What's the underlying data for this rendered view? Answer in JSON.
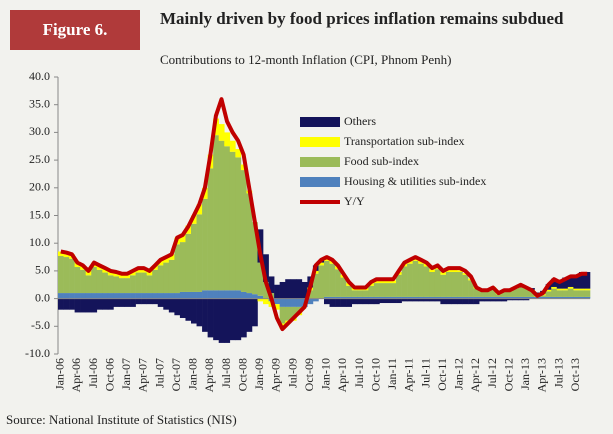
{
  "chart_data": {
    "type": "bar",
    "figure_label": "Figure 6.",
    "title": "Mainly driven by food prices inflation remains subdued",
    "subtitle": "Contributions to 12-month Inflation  (CPI, Phnom Penh)",
    "source": "Source: National Institute of Statistics (NIS)",
    "categories": [
      "Jan-06",
      null,
      null,
      "Apr-06",
      null,
      null,
      "Jul-06",
      null,
      null,
      "Oct-06",
      null,
      null,
      "Jan-07",
      null,
      null,
      "Apr-07",
      null,
      null,
      "Jul-07",
      null,
      null,
      "Oct-07",
      null,
      null,
      "Jan-08",
      null,
      null,
      "Apr-08",
      null,
      null,
      "Jul-08",
      null,
      null,
      "Oct-08",
      null,
      null,
      "Jan-09",
      null,
      null,
      "Apr-09",
      null,
      null,
      "Jul-09",
      null,
      null,
      "Oct-09",
      null,
      null,
      "Jan-10",
      null,
      null,
      "Apr-10",
      null,
      null,
      "Jul-10",
      null,
      null,
      "Oct-10",
      null,
      null,
      "Jan-11",
      null,
      null,
      "Apr-11",
      null,
      null,
      "Jul-11",
      null,
      null,
      "Oct-11",
      null,
      null,
      "Jan-12",
      null,
      null,
      "Apr-12",
      null,
      null,
      "Jul-12",
      null,
      null,
      "Oct-12",
      null,
      null,
      "Jan-13",
      null,
      null,
      "Apr-13",
      null,
      null,
      "Jul-13",
      null,
      null,
      "Oct-13",
      null,
      null
    ],
    "ylim": [
      -10,
      40
    ],
    "yticks": [
      {
        "value": -10,
        "label": "-10.0"
      },
      {
        "value": -5,
        "label": "-5.0"
      },
      {
        "value": 0,
        "label": "0.0"
      },
      {
        "value": 5,
        "label": "5.0"
      },
      {
        "value": 10,
        "label": "10.0"
      },
      {
        "value": 15,
        "label": "15.0"
      },
      {
        "value": 20,
        "label": "20.0"
      },
      {
        "value": 25,
        "label": "25.0"
      },
      {
        "value": 30,
        "label": "30.0"
      },
      {
        "value": 35,
        "label": "35.0"
      },
      {
        "value": 40,
        "label": "40.0"
      }
    ],
    "series": [
      {
        "name": "Others",
        "color": "#14145a",
        "type": "bar",
        "values": [
          -2,
          -2,
          -2,
          -2.5,
          -2.5,
          -2.5,
          -2.5,
          -2,
          -2,
          -2,
          -1.5,
          -1.5,
          -1.5,
          -1.5,
          -1,
          -1,
          -1,
          -1,
          -1.5,
          -2,
          -2.5,
          -3,
          -3.5,
          -4,
          -4.5,
          -5,
          -6,
          -7,
          -7.5,
          -8,
          -8,
          -7.5,
          -7.5,
          -7,
          -6,
          -5,
          6,
          5,
          3,
          2.5,
          3,
          3.5,
          3.5,
          3.5,
          3,
          2,
          1,
          0.5,
          -1,
          -1.5,
          -1.5,
          -1.5,
          -1.5,
          -1,
          -1,
          -1,
          -1,
          -1,
          -0.8,
          -0.8,
          -0.8,
          -0.8,
          -0.5,
          -0.5,
          -0.5,
          -0.5,
          -0.5,
          -0.5,
          -0.5,
          -1,
          -1,
          -1,
          -1,
          -1,
          -1,
          -1,
          -0.5,
          -0.5,
          -0.5,
          -0.5,
          -0.5,
          -0.3,
          -0.3,
          -0.3,
          -0.3,
          0.3,
          0.5,
          0.5,
          1,
          1.5,
          1.5,
          2,
          2,
          2.5,
          3,
          3
        ]
      },
      {
        "name": "Transportation sub-index",
        "color": "#ffff00",
        "type": "bar",
        "values": [
          0.8,
          0.8,
          0.8,
          0.8,
          0.8,
          0.8,
          0.8,
          0.8,
          0.8,
          0.8,
          0.8,
          0.8,
          0.8,
          0.8,
          0.8,
          0.8,
          0.8,
          0.8,
          1,
          1,
          1,
          1.2,
          1.5,
          1.5,
          1.5,
          1.8,
          2,
          2.5,
          3,
          3,
          2.5,
          2,
          1.5,
          1,
          0.5,
          0,
          -0.5,
          -1,
          -1,
          -1,
          -1,
          -0.5,
          -0.5,
          -0.5,
          0,
          0.5,
          0.5,
          0.5,
          0.5,
          0.5,
          0.5,
          0.5,
          0.5,
          0.5,
          0.5,
          0.5,
          0.5,
          0.5,
          0.5,
          0.5,
          0.5,
          0.5,
          0.5,
          0.5,
          0.5,
          0.5,
          0.5,
          0.5,
          0.5,
          0.5,
          0.5,
          0.5,
          0.3,
          0.3,
          0.3,
          0.3,
          0.3,
          0.3,
          0.3,
          0.3,
          0.3,
          0.3,
          0.3,
          0.3,
          0.3,
          0.3,
          0.3,
          0.3,
          0.3,
          0.3,
          0.3,
          0.3,
          0.3,
          0.3,
          0.3,
          0.3
        ]
      },
      {
        "name": "Food sub-index",
        "color": "#9bbb59",
        "type": "bar",
        "values": [
          6.7,
          6.5,
          6.2,
          4.7,
          4.2,
          3.2,
          4.7,
          4.2,
          3.7,
          3.2,
          3,
          2.7,
          2.7,
          3.2,
          3.7,
          3.7,
          3.2,
          4.2,
          5,
          5.5,
          6,
          8.8,
          9,
          10.5,
          12.3,
          14,
          16.5,
          22,
          28,
          27,
          26,
          25,
          24,
          22,
          18,
          13,
          6,
          3,
          1,
          0,
          -3,
          -2.5,
          -2,
          -1,
          0,
          1.5,
          4.5,
          6,
          6.5,
          6,
          5,
          3.5,
          2,
          1.2,
          1.2,
          1.2,
          2,
          2.5,
          2.5,
          2.5,
          2.5,
          4,
          5.5,
          6,
          6.5,
          6,
          5.5,
          4.5,
          5,
          4,
          4.5,
          4.5,
          4.5,
          4,
          3,
          1.5,
          1,
          1,
          1.5,
          0.5,
          1,
          1,
          1.5,
          2,
          1.5,
          1,
          0,
          0.3,
          1,
          1.5,
          1.2,
          1.2,
          1.5,
          1.2,
          1.2,
          1.2
        ]
      },
      {
        "name": "Housing & utilities sub-index",
        "color": "#4f81bd",
        "type": "bar",
        "values": [
          1,
          1,
          1,
          1,
          1,
          1,
          1,
          1,
          1,
          1,
          1,
          1,
          1,
          1,
          1,
          1,
          1,
          1,
          1,
          1,
          1,
          1,
          1.2,
          1.2,
          1.2,
          1.2,
          1.5,
          1.5,
          1.5,
          1.5,
          1.5,
          1.5,
          1.5,
          1.2,
          1,
          0.8,
          0.5,
          0,
          -0.5,
          -1,
          -1.5,
          -1.5,
          -1.5,
          -1.5,
          -1.5,
          -1,
          -0.5,
          0,
          0.3,
          0.3,
          0.3,
          0.3,
          0.3,
          0.3,
          0.3,
          0.3,
          0.3,
          0.3,
          0.3,
          0.3,
          0.3,
          0.3,
          0.3,
          0.3,
          0.3,
          0.3,
          0.3,
          0.3,
          0.3,
          0.3,
          0.3,
          0.3,
          0.3,
          0.3,
          0.3,
          0.3,
          0.3,
          0.3,
          0.3,
          0.3,
          0.3,
          0.3,
          0.3,
          0.3,
          0.3,
          0.3,
          0.3,
          0.3,
          0.3,
          0.3,
          0.3,
          0.3,
          0.3,
          0.3,
          0.3,
          0.3
        ]
      },
      {
        "name": "Y/Y",
        "color": "#c00000",
        "type": "line",
        "values": [
          8.5,
          8.3,
          8,
          6.5,
          6,
          5,
          6.5,
          6,
          5.5,
          5,
          4.8,
          4.5,
          4.5,
          5,
          5.5,
          5.5,
          5,
          6,
          7,
          7.5,
          8,
          11,
          11.5,
          13,
          15,
          17,
          20,
          26,
          33,
          36,
          32,
          30,
          28.5,
          26,
          20,
          14,
          8,
          3,
          0,
          -3.5,
          -5.5,
          -4.5,
          -3.5,
          -2.5,
          -1.5,
          2,
          6,
          7,
          7.5,
          7,
          6,
          4.5,
          3,
          2,
          2,
          2,
          3,
          3.5,
          3.5,
          3.5,
          3.5,
          5,
          6.5,
          7,
          7.5,
          7,
          6.5,
          5.5,
          6,
          5,
          5.5,
          5.5,
          5.5,
          5,
          4,
          2,
          1.5,
          1.5,
          2,
          1,
          1.5,
          1.5,
          2,
          2.5,
          2,
          1.5,
          0.5,
          1,
          2.5,
          3.5,
          3,
          3.5,
          4,
          4,
          4.5,
          4.5
        ]
      }
    ]
  }
}
